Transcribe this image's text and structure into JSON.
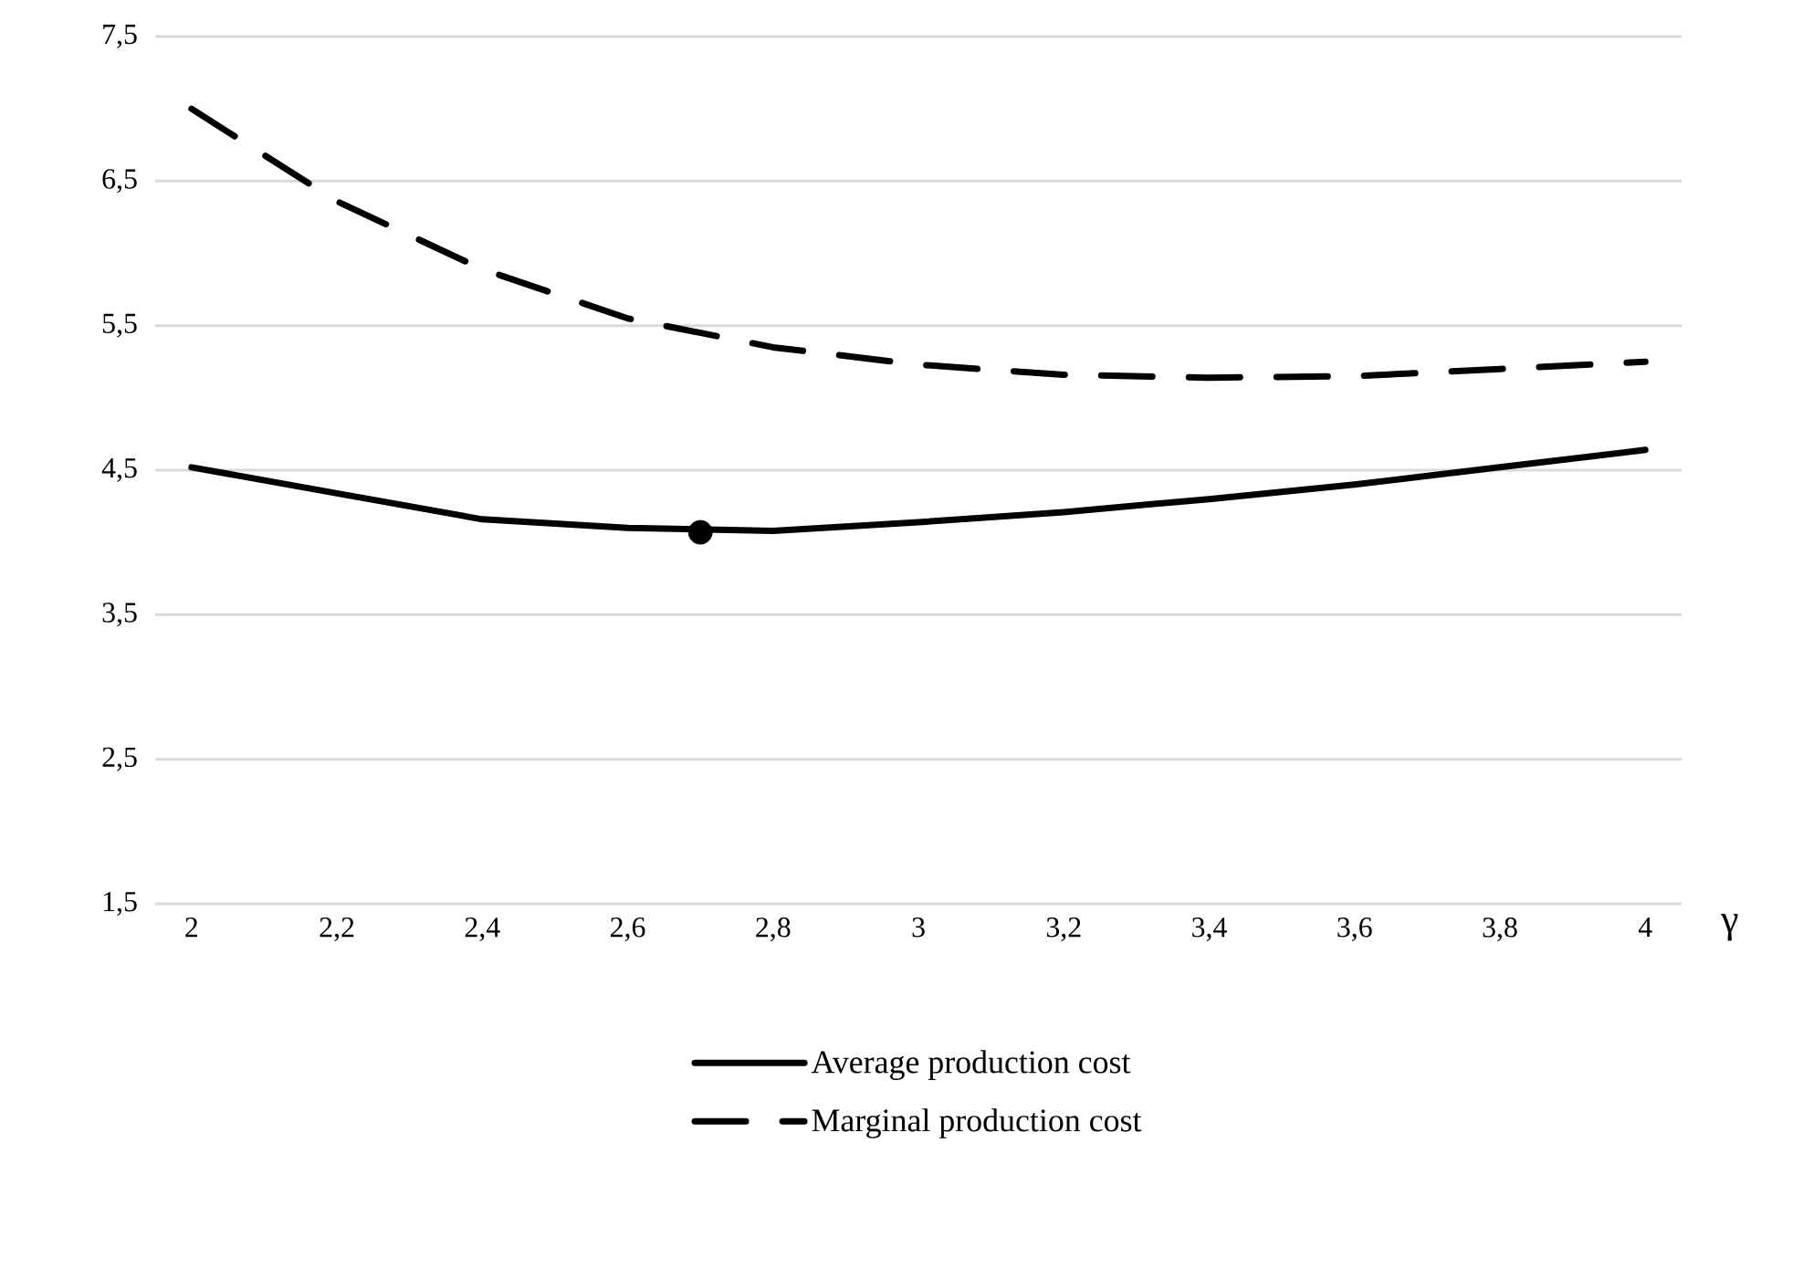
{
  "chart_data": {
    "type": "line",
    "xlabel": "γ",
    "x": [
      2,
      2.2,
      2.4,
      2.6,
      2.8,
      3,
      3.2,
      3.4,
      3.6,
      3.8,
      4
    ],
    "series": [
      {
        "name": "Average production cost",
        "color": "#000000",
        "line_style": "solid",
        "values": [
          4.52,
          4.34,
          4.16,
          4.1,
          4.08,
          4.14,
          4.21,
          4.3,
          4.4,
          4.52,
          4.64
        ]
      },
      {
        "name": "Marginal production cost",
        "color": "#000000",
        "line_style": "dashed",
        "values": [
          7.0,
          6.36,
          5.89,
          5.55,
          5.35,
          5.23,
          5.16,
          5.14,
          5.15,
          5.2,
          5.25
        ]
      },
      {
        "type": "scatter",
        "color": "#000000",
        "marker": "circle",
        "x": [
          2.7
        ],
        "values": [
          4.07
        ]
      }
    ],
    "xlim": [
      1.95,
      4.05
    ],
    "xticks": [
      2,
      {
        "value": 2.2,
        "label": "2,2"
      },
      {
        "value": 2.4,
        "label": "2,4"
      },
      {
        "value": 2.6,
        "label": "2,6"
      },
      {
        "value": 2.8,
        "label": "2,8"
      },
      3,
      {
        "value": 3.2,
        "label": "3,2"
      },
      {
        "value": 3.4,
        "label": "3,4"
      },
      {
        "value": 3.6,
        "label": "3,6"
      },
      {
        "value": 3.8,
        "label": "3,8"
      },
      4
    ],
    "ylim": [
      1.5,
      7.5
    ],
    "yticks": [
      {
        "value": 1.5,
        "label": "1,5"
      },
      {
        "value": 2.5,
        "label": "2,5"
      },
      {
        "value": 3.5,
        "label": "3,5"
      },
      {
        "value": 4.5,
        "label": "4,5"
      },
      {
        "value": 5.5,
        "label": "5,5"
      },
      {
        "value": 6.5,
        "label": "6,5"
      },
      {
        "value": 7.5,
        "label": "7,5"
      }
    ],
    "grid": "y",
    "legend": "bottom"
  }
}
